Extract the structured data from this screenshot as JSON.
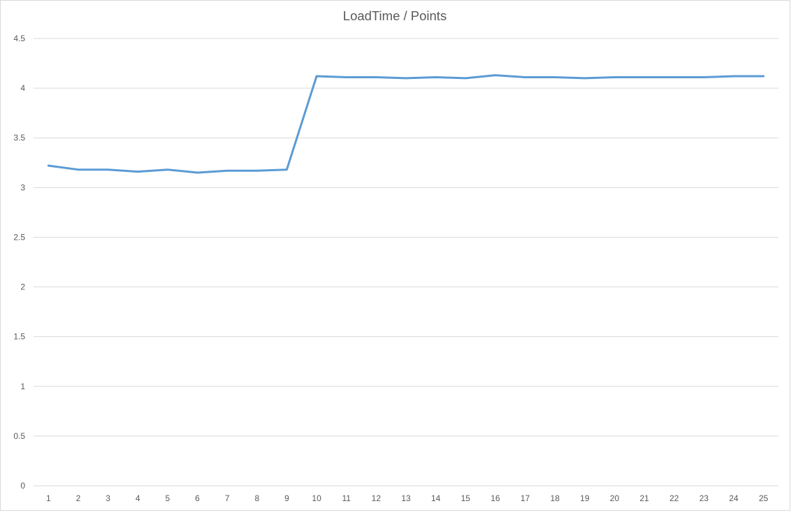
{
  "chart_data": {
    "type": "line",
    "title": "LoadTime / Points",
    "xlabel": "",
    "ylabel": "",
    "categories": [
      "1",
      "2",
      "3",
      "4",
      "5",
      "6",
      "7",
      "8",
      "9",
      "10",
      "11",
      "12",
      "13",
      "14",
      "15",
      "16",
      "17",
      "18",
      "19",
      "20",
      "21",
      "22",
      "23",
      "24",
      "25"
    ],
    "series": [
      {
        "color": "#5b9bd5",
        "values": [
          3.22,
          3.18,
          3.18,
          3.16,
          3.18,
          3.15,
          3.17,
          3.17,
          3.18,
          4.12,
          4.11,
          4.11,
          4.1,
          4.11,
          4.1,
          4.13,
          4.11,
          4.11,
          4.1,
          4.11,
          4.11,
          4.11,
          4.11,
          4.12,
          4.12
        ]
      }
    ],
    "ylim": [
      0,
      4.5
    ],
    "yticks": [
      "0",
      "0.5",
      "1",
      "1.5",
      "2",
      "2.5",
      "3",
      "3.5",
      "4",
      "4.5"
    ],
    "grid": true,
    "legend": "none"
  }
}
